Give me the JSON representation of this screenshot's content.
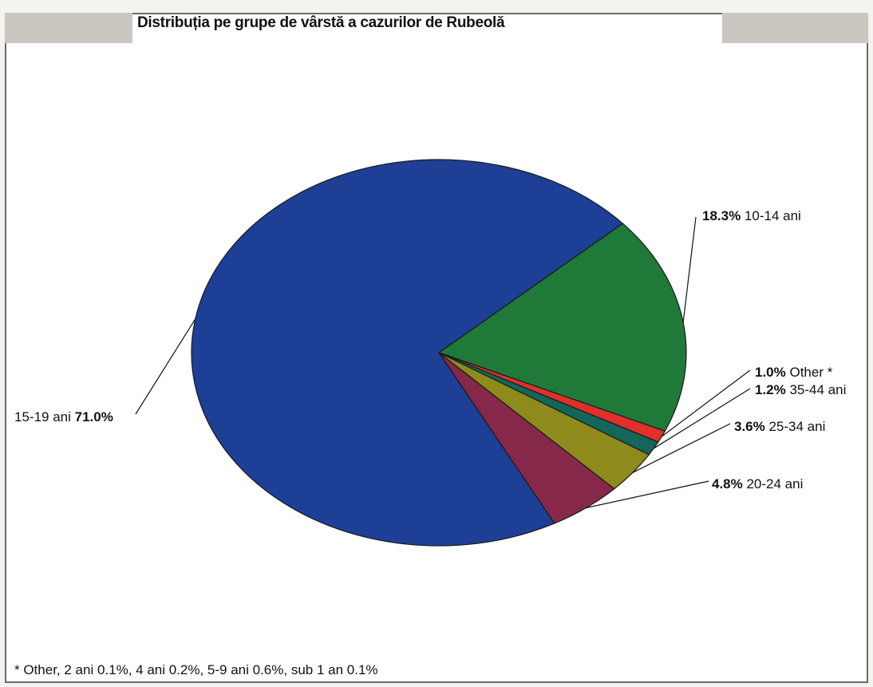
{
  "chart_data": {
    "type": "pie",
    "title": "Distribuția pe grupe de vârstă a cazurilor de Rubeolă",
    "slices": [
      {
        "label": "10-14 ani",
        "percent_text": "18.3%",
        "value": 18.3,
        "color": "#1f7a3a"
      },
      {
        "label": "Other *",
        "percent_text": "1.0%",
        "value": 1.0,
        "color": "#e0302a"
      },
      {
        "label": "35-44 ani",
        "percent_text": "1.2%",
        "value": 1.2,
        "color": "#13675a"
      },
      {
        "label": "25-34 ani",
        "percent_text": "3.6%",
        "value": 3.6,
        "color": "#8e8a1c"
      },
      {
        "label": "20-24 ani",
        "percent_text": "4.8%",
        "value": 4.8,
        "color": "#86284a"
      },
      {
        "label": "15-19 ani",
        "percent_text": "71.0%",
        "value": 71.0,
        "color": "#1e3f96"
      }
    ],
    "footnote": "* Other, 2 ani 0.1%, 4 ani 0.2%, 5-9 ani 0.6%, sub 1 an 0.1%",
    "legend": "none"
  }
}
